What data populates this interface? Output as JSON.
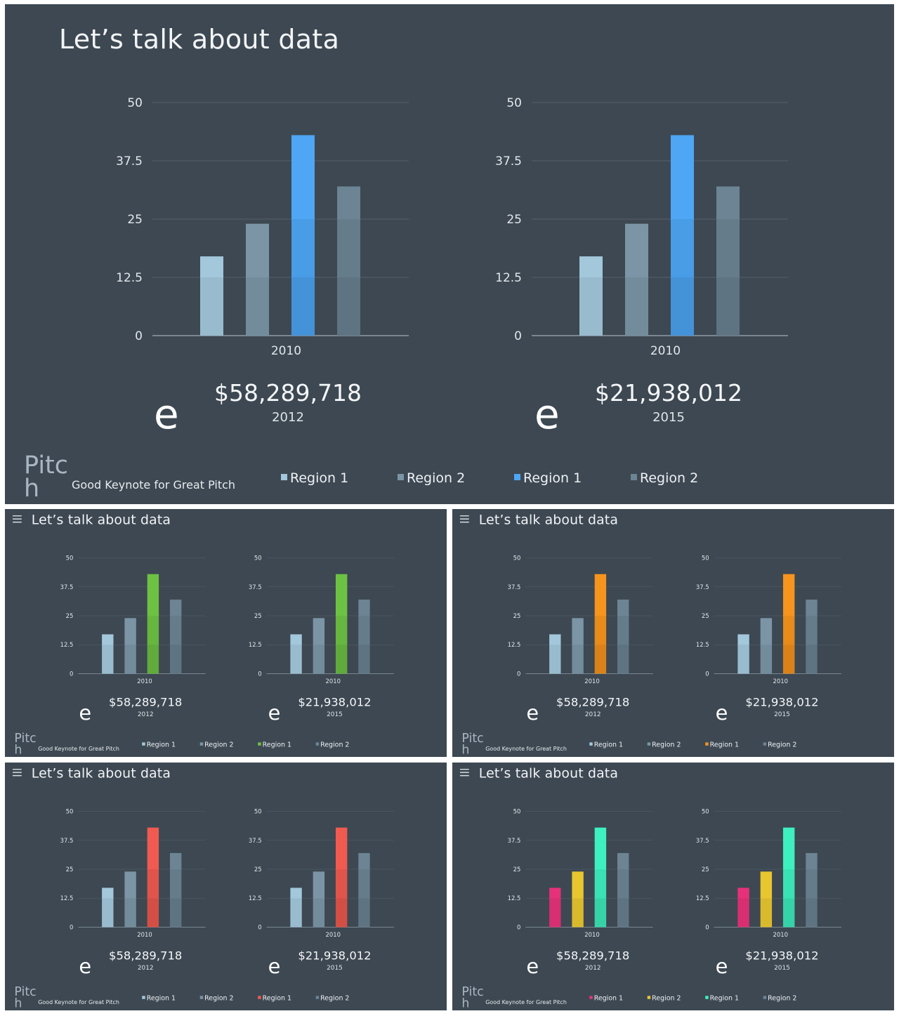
{
  "common": {
    "title": "Let’s talk about data",
    "brand": "Pitch",
    "tagline": "Good Keynote for Great Pitch",
    "e_glyph": "e",
    "amount_left": "$58,289,718",
    "year_left": "2012",
    "amount_right": "$21,938,012",
    "year_right": "2015",
    "legend": [
      "Region 1",
      "Region 2",
      "Region 1",
      "Region 2"
    ]
  },
  "colors": {
    "background": "#3d4852",
    "main": [
      "#a3c7db",
      "#7b95a6",
      "#4ea6f5",
      "#6c8494"
    ],
    "green": [
      "#a3c7db",
      "#7b95a6",
      "#6dc243",
      "#6c8494"
    ],
    "orange": [
      "#a3c7db",
      "#7b95a6",
      "#f7941d",
      "#6c8494"
    ],
    "red": [
      "#a3c7db",
      "#7b95a6",
      "#f05a50",
      "#6c8494"
    ],
    "multi": [
      "#e6317a",
      "#e8c630",
      "#3ef0c0",
      "#6c8494"
    ]
  },
  "chart_data": [
    {
      "type": "bar",
      "categories": [
        "2010"
      ],
      "series": [
        {
          "name": "Region 1",
          "values": [
            17
          ]
        },
        {
          "name": "Region 2",
          "values": [
            24
          ]
        },
        {
          "name": "Region 1",
          "values": [
            43
          ]
        },
        {
          "name": "Region 2",
          "values": [
            32
          ]
        }
      ],
      "ylim": [
        0,
        50
      ],
      "yticks": [
        "0",
        "12.5",
        "25",
        "37.5",
        "50"
      ],
      "grid": true,
      "legend": "bottom"
    },
    {
      "type": "bar",
      "categories": [
        "2010"
      ],
      "series": [
        {
          "name": "Region 1",
          "values": [
            17
          ]
        },
        {
          "name": "Region 2",
          "values": [
            24
          ]
        },
        {
          "name": "Region 1",
          "values": [
            43
          ]
        },
        {
          "name": "Region 2",
          "values": [
            32
          ]
        }
      ],
      "ylim": [
        0,
        50
      ],
      "yticks": [
        "0",
        "12.5",
        "25",
        "37.5",
        "50"
      ],
      "grid": true,
      "legend": "bottom"
    }
  ]
}
